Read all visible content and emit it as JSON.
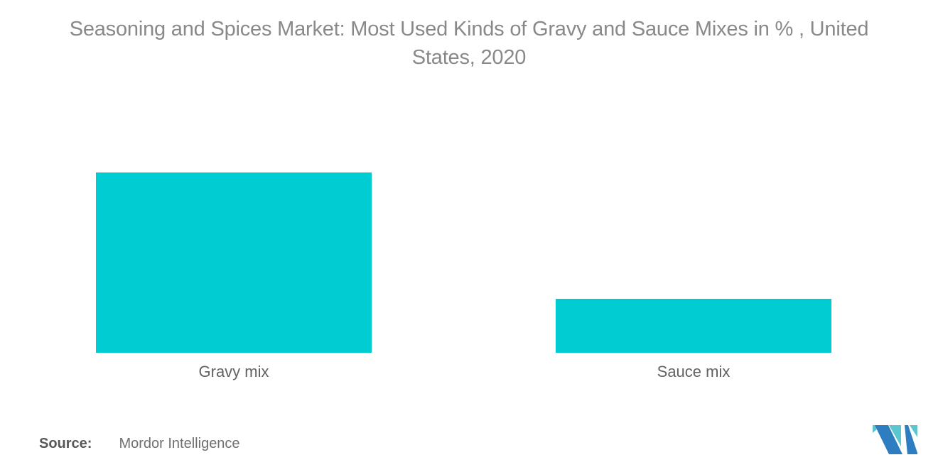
{
  "page": {
    "title_display": "Seasoning and Spices Market: Most Used Kinds of Gravy and Sauce Mixes in % , United\nStates, 2020",
    "source_label": "Source:",
    "source_value": "Mordor Intelligence"
  },
  "colors": {
    "bar": "#00CCD2",
    "title_text": "#898989",
    "category_text": "#626262",
    "source_text": "#575757",
    "logo_blue": "#2E7DC0",
    "logo_teal": "#5BC6CD"
  },
  "chart_data": {
    "type": "bar",
    "title": "Seasoning and Spices Market: Most Used Kinds of Gravy and Sauce Mixes in % , United States, 2020",
    "categories": [
      "Gravy mix",
      "Sauce mix"
    ],
    "values": [
      77,
      23
    ],
    "xlabel": "",
    "ylabel": "",
    "ylim": [
      0,
      77
    ],
    "grid": false,
    "legend": false,
    "axes_visible": false,
    "value_labels_shown": false,
    "bar_color": "#00CCD2"
  }
}
